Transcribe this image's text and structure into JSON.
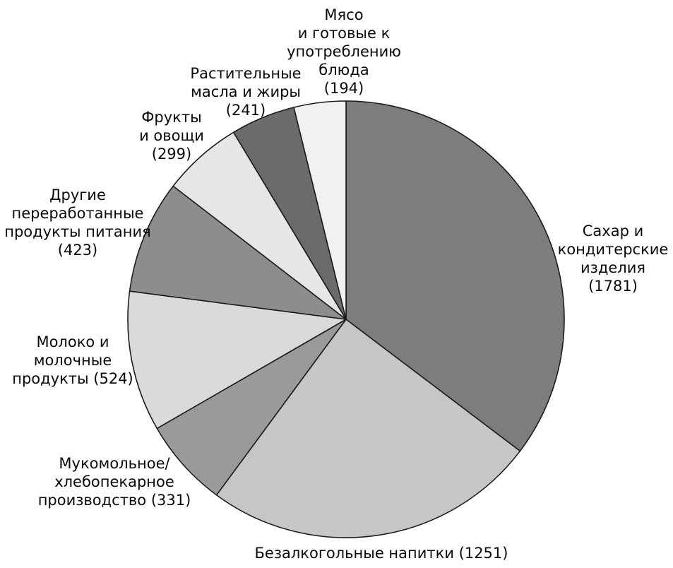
{
  "chart_data": {
    "type": "pie",
    "title": "",
    "total": 5044,
    "background": "#ffffff",
    "stroke_color": "#1c1c1c",
    "start_angle_deg": 0,
    "direction": "clockwise",
    "legend_position": "labels-around-pie",
    "slices": [
      {
        "name": "Сахар и кондитерские изделия",
        "value": 1781,
        "color": "#7d7d7d",
        "label": "Сахар и\nкондитерские\nизделия\n(1781)"
      },
      {
        "name": "Безалкогольные напитки",
        "value": 1251,
        "color": "#c6c6c6",
        "label": "Безалкогольные напитки (1251)"
      },
      {
        "name": "Мукомольное/хлебопекарное производство",
        "value": 331,
        "color": "#9a9a9a",
        "label": "Мукомольное/\nхлебопекарное\nпроизводство (331)"
      },
      {
        "name": "Молоко и молочные продукты",
        "value": 524,
        "color": "#dadada",
        "label": "Молоко и\nмолочные\nпродукты (524)"
      },
      {
        "name": "Другие переработанные продукты питания",
        "value": 423,
        "color": "#8d8d8d",
        "label": "Другие\nпереработанные\nпродукты питания\n(423)"
      },
      {
        "name": "Фрукты и овощи",
        "value": 299,
        "color": "#e6e6e6",
        "label": "Фрукты\nи овощи\n(299)"
      },
      {
        "name": "Растительные масла и жиры",
        "value": 241,
        "color": "#6b6b6b",
        "label": "Растительные\nмасла и жиры\n(241)"
      },
      {
        "name": "Мясо и готовые к употреблению блюда",
        "value": 194,
        "color": "#f1f1f1",
        "label": "Мясо\nи готовые к\nупотреблению\nблюда\n(194)"
      }
    ]
  }
}
